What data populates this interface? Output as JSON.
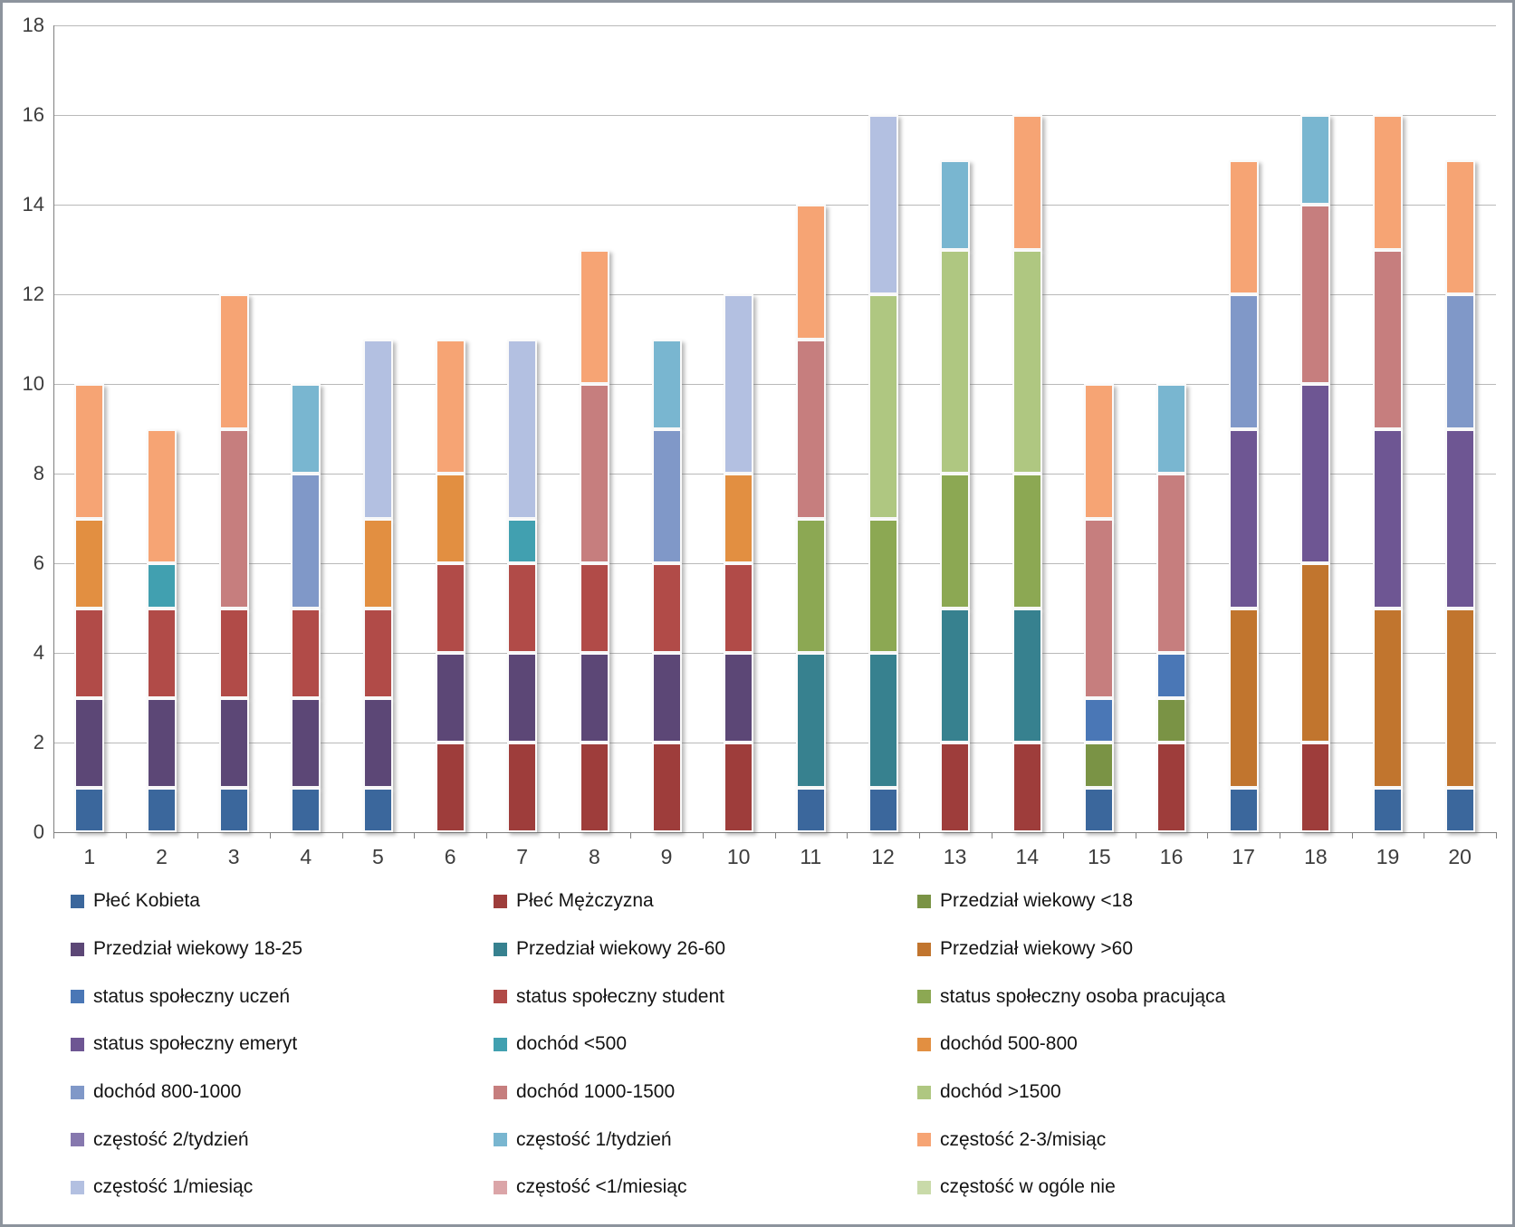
{
  "chart_data": {
    "type": "bar",
    "stacked": true,
    "title": "",
    "xlabel": "",
    "ylabel": "",
    "grid": true,
    "legend_position": "bottom",
    "legend_columns": 3,
    "y_axis": {
      "min": 0,
      "max": 18,
      "step": 2,
      "tick_labels": [
        "0",
        "2",
        "4",
        "6",
        "8",
        "10",
        "12",
        "14",
        "16",
        "18"
      ]
    },
    "categories": [
      "1",
      "2",
      "3",
      "4",
      "5",
      "6",
      "7",
      "8",
      "9",
      "10",
      "11",
      "12",
      "13",
      "14",
      "15",
      "16",
      "17",
      "18",
      "19",
      "20"
    ],
    "bar_totals": [
      10,
      9,
      12,
      10,
      11,
      11,
      11,
      13,
      11,
      12,
      14,
      16,
      15,
      16,
      10,
      10,
      15,
      16,
      16,
      15
    ],
    "series": [
      {
        "name": "Płeć Kobieta",
        "color": "#3b679c",
        "values": [
          1,
          1,
          1,
          1,
          1,
          0,
          0,
          0,
          0,
          0,
          1,
          1,
          0,
          0,
          1,
          0,
          1,
          0,
          1,
          1
        ]
      },
      {
        "name": "Płeć Mężczyzna",
        "color": "#9e3d3b",
        "values": [
          0,
          0,
          0,
          0,
          0,
          2,
          2,
          2,
          2,
          2,
          0,
          0,
          2,
          2,
          0,
          2,
          0,
          2,
          0,
          0
        ]
      },
      {
        "name": "Przedział wiekowy <18",
        "color": "#7a9345",
        "values": [
          0,
          0,
          0,
          0,
          0,
          0,
          0,
          0,
          0,
          0,
          0,
          0,
          0,
          0,
          1,
          1,
          0,
          0,
          0,
          0
        ]
      },
      {
        "name": "Przedział wiekowy 18-25",
        "color": "#5c4776",
        "values": [
          2,
          2,
          2,
          2,
          2,
          2,
          2,
          2,
          2,
          2,
          0,
          0,
          0,
          0,
          0,
          0,
          0,
          0,
          0,
          0
        ]
      },
      {
        "name": "Przedział wiekowy 26-60",
        "color": "#37818f",
        "values": [
          0,
          0,
          0,
          0,
          0,
          0,
          0,
          0,
          0,
          0,
          3,
          3,
          3,
          3,
          0,
          0,
          0,
          0,
          0,
          0
        ]
      },
      {
        "name": "Przedział wiekowy >60",
        "color": "#c1752e",
        "values": [
          0,
          0,
          0,
          0,
          0,
          0,
          0,
          0,
          0,
          0,
          0,
          0,
          0,
          0,
          0,
          0,
          4,
          4,
          4,
          4
        ]
      },
      {
        "name": "status społeczny uczeń",
        "color": "#4a77b6",
        "values": [
          0,
          0,
          0,
          0,
          0,
          0,
          0,
          0,
          0,
          0,
          0,
          0,
          0,
          0,
          1,
          1,
          0,
          0,
          0,
          0
        ]
      },
      {
        "name": "status społeczny student",
        "color": "#b14b48",
        "values": [
          2,
          2,
          2,
          2,
          2,
          2,
          2,
          2,
          2,
          2,
          0,
          0,
          0,
          0,
          0,
          0,
          0,
          0,
          0,
          0
        ]
      },
      {
        "name": "status społeczny osoba pracująca",
        "color": "#8ca853",
        "values": [
          0,
          0,
          0,
          0,
          0,
          0,
          0,
          0,
          0,
          0,
          3,
          3,
          3,
          3,
          0,
          0,
          0,
          0,
          0,
          0
        ]
      },
      {
        "name": "status społeczny emeryt",
        "color": "#6e5693",
        "values": [
          0,
          0,
          0,
          0,
          0,
          0,
          0,
          0,
          0,
          0,
          0,
          0,
          0,
          0,
          0,
          0,
          4,
          4,
          4,
          4
        ]
      },
      {
        "name": "dochód <500",
        "color": "#41a0b0",
        "values": [
          0,
          1,
          0,
          0,
          0,
          0,
          1,
          0,
          0,
          0,
          0,
          0,
          0,
          0,
          0,
          0,
          0,
          0,
          0,
          0
        ]
      },
      {
        "name": "dochód 500-800",
        "color": "#e28f41",
        "values": [
          2,
          0,
          0,
          0,
          2,
          2,
          0,
          0,
          0,
          2,
          0,
          0,
          0,
          0,
          0,
          0,
          0,
          0,
          0,
          0
        ]
      },
      {
        "name": "dochód 800-1000",
        "color": "#8098c8",
        "values": [
          0,
          0,
          0,
          3,
          0,
          0,
          0,
          0,
          3,
          0,
          0,
          0,
          0,
          0,
          0,
          0,
          3,
          0,
          0,
          3
        ]
      },
      {
        "name": "dochód 1000-1500",
        "color": "#c67e7e",
        "values": [
          0,
          0,
          4,
          0,
          0,
          0,
          0,
          4,
          0,
          0,
          4,
          0,
          0,
          0,
          4,
          4,
          0,
          4,
          4,
          0
        ]
      },
      {
        "name": "dochód >1500",
        "color": "#afc781",
        "values": [
          0,
          0,
          0,
          0,
          0,
          0,
          0,
          0,
          0,
          0,
          0,
          5,
          5,
          5,
          0,
          0,
          0,
          0,
          0,
          0
        ]
      },
      {
        "name": "częstość 2/tydzień",
        "color": "#8678ae",
        "values": [
          0,
          0,
          0,
          0,
          0,
          0,
          0,
          0,
          0,
          0,
          0,
          0,
          0,
          0,
          0,
          0,
          0,
          0,
          0,
          0
        ]
      },
      {
        "name": "częstość 1/tydzień",
        "color": "#79b6d0",
        "values": [
          0,
          0,
          0,
          2,
          0,
          0,
          0,
          0,
          2,
          0,
          0,
          0,
          2,
          0,
          0,
          2,
          0,
          2,
          0,
          0
        ]
      },
      {
        "name": "częstość 2-3/misiąc",
        "color": "#f6a474",
        "values": [
          3,
          3,
          3,
          0,
          0,
          3,
          0,
          3,
          0,
          0,
          3,
          0,
          0,
          3,
          3,
          0,
          3,
          0,
          3,
          3
        ]
      },
      {
        "name": "częstość 1/miesiąc",
        "color": "#b3c0e1",
        "values": [
          0,
          0,
          0,
          0,
          4,
          0,
          4,
          0,
          0,
          4,
          0,
          4,
          0,
          0,
          0,
          0,
          0,
          0,
          0,
          0
        ]
      },
      {
        "name": "częstość <1/miesiąc",
        "color": "#dba5a8",
        "values": [
          0,
          0,
          0,
          0,
          0,
          0,
          0,
          0,
          0,
          0,
          0,
          0,
          0,
          0,
          0,
          0,
          0,
          0,
          0,
          0
        ]
      },
      {
        "name": "częstość w ogóle nie",
        "color": "#c9daa9",
        "values": [
          0,
          0,
          0,
          0,
          0,
          0,
          0,
          0,
          0,
          0,
          0,
          0,
          0,
          0,
          0,
          0,
          0,
          0,
          0,
          0
        ]
      }
    ]
  }
}
